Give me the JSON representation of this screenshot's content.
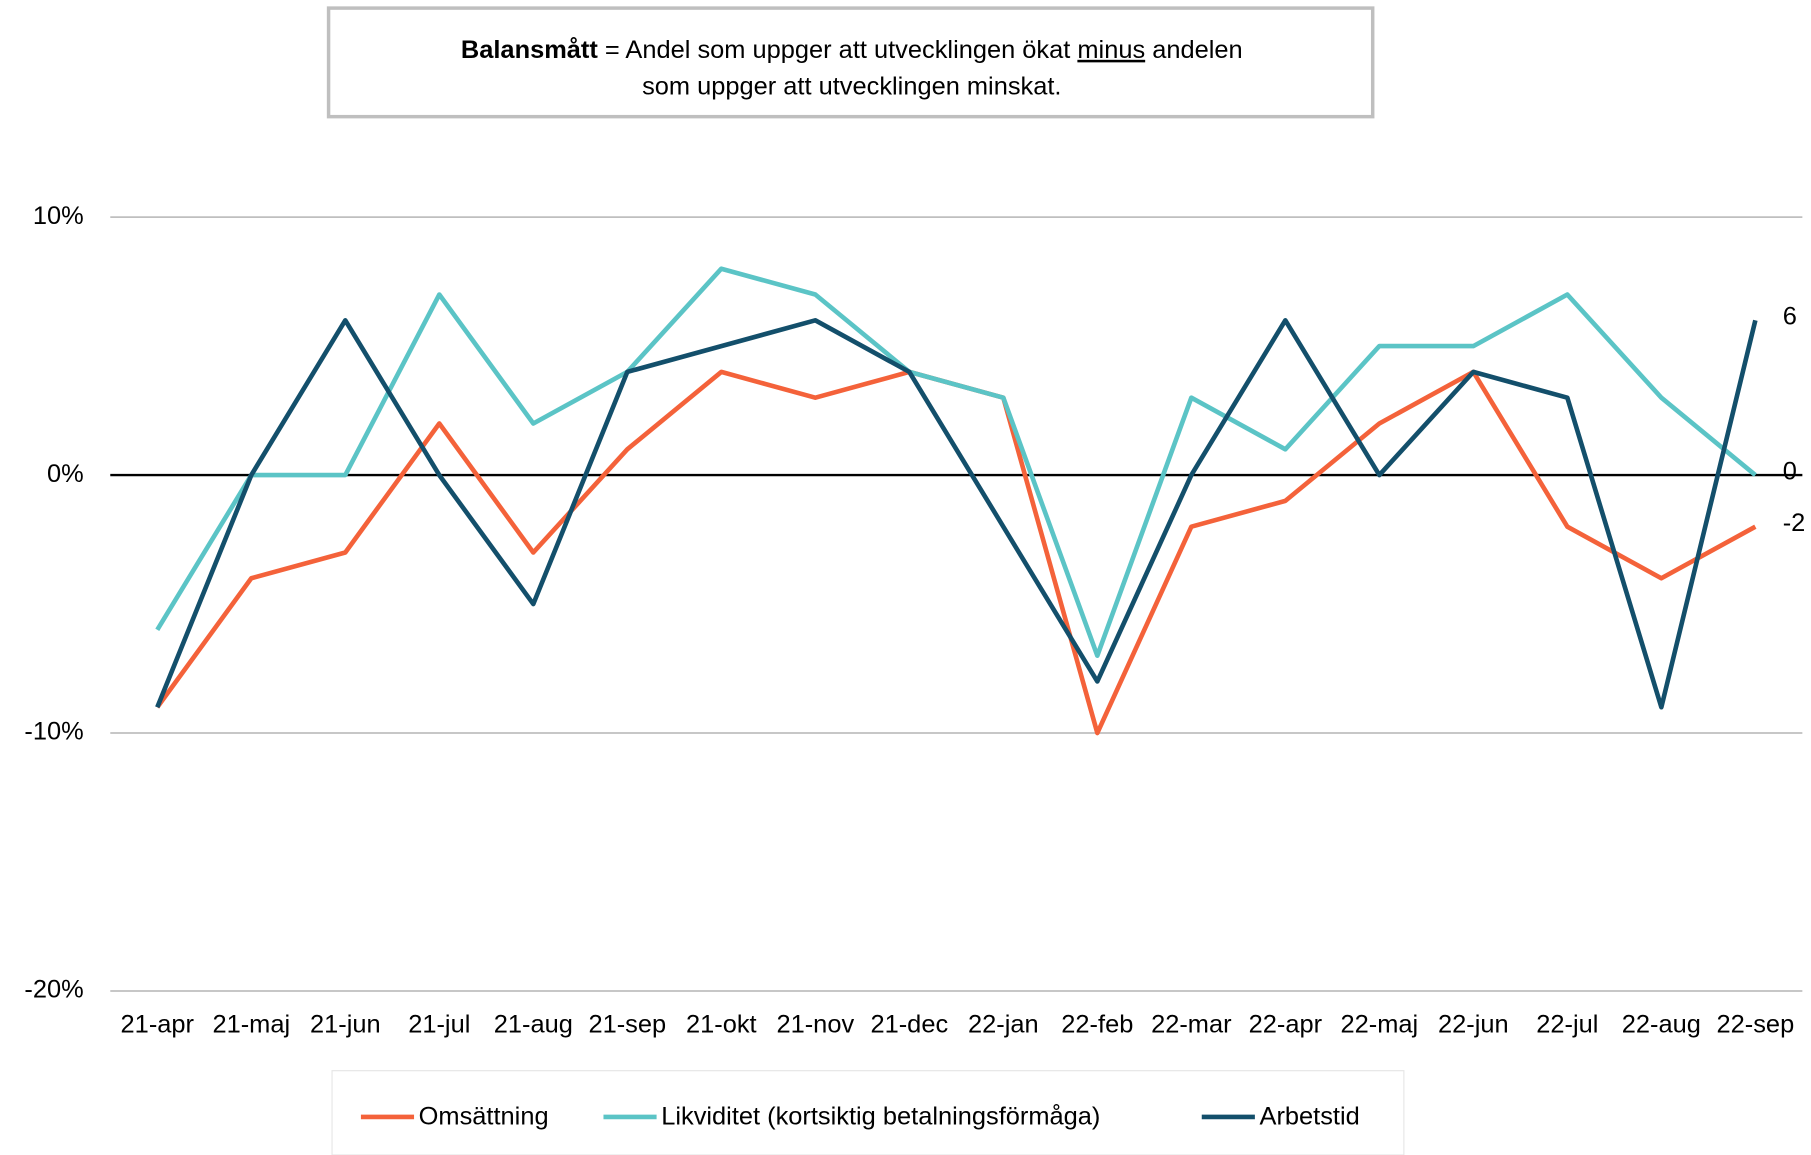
{
  "chart_data": {
    "type": "line",
    "annotation": {
      "bold": "Balansmått",
      "text1": "= Andel som uppger att utvecklingen ökat",
      "underlined": "minus",
      "text2": "andelen",
      "line2": "som uppger att utvecklingen minskat."
    },
    "categories": [
      "21-apr",
      "21-maj",
      "21-jun",
      "21-jul",
      "21-aug",
      "21-sep",
      "21-okt",
      "21-nov",
      "21-dec",
      "22-jan",
      "22-feb",
      "22-mar",
      "22-apr",
      "22-maj",
      "22-jun",
      "22-jul",
      "22-aug",
      "22-sep"
    ],
    "series": [
      {
        "name": "Omsättning",
        "color": "#f4623a",
        "values": [
          -9,
          -4,
          -3,
          2,
          -3,
          1,
          4,
          3,
          4,
          3,
          -10,
          -2,
          -1,
          2,
          4,
          -2,
          -4,
          -2
        ]
      },
      {
        "name": "Likviditet (kortsiktig betalningsförmåga)",
        "color": "#5bc4c6",
        "values": [
          -6,
          0,
          0,
          7,
          2,
          4,
          8,
          7,
          4,
          3,
          -7,
          3,
          1,
          5,
          5,
          7,
          3,
          0
        ]
      },
      {
        "name": "Arbetstid",
        "color": "#134f6b",
        "values": [
          -9,
          0,
          6,
          0,
          -5,
          4,
          5,
          6,
          4,
          -2,
          -8,
          0,
          6,
          0,
          4,
          3,
          -9,
          6
        ]
      }
    ],
    "ylim": [
      -20,
      10
    ],
    "yticks": [
      {
        "value": -20,
        "label": "-20%"
      },
      {
        "value": -10,
        "label": "-10%"
      },
      {
        "value": 0,
        "label": "0%"
      },
      {
        "value": 10,
        "label": "10%"
      }
    ],
    "grid": true,
    "legend": "bottom"
  }
}
